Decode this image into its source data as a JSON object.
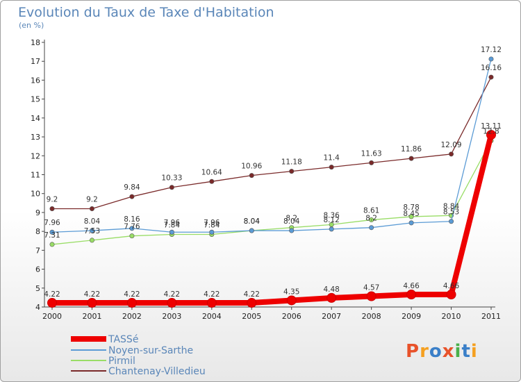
{
  "header": {
    "title": "Evolution du Taux de Taxe d'Habitation",
    "unit": "(en %)"
  },
  "logo": {
    "text": "Proxiti",
    "colors": [
      "#e8522a",
      "#f5a020",
      "#3a7fc8",
      "#e8522a",
      "#4ab04a",
      "#3a7fc8",
      "#f5a020"
    ]
  },
  "chart_data": {
    "type": "line",
    "title": "Evolution du Taux de Taxe d'Habitation",
    "ylabel": "(en %)",
    "xlabel": "",
    "x": [
      "2000",
      "2001",
      "2002",
      "2003",
      "2004",
      "2005",
      "2006",
      "2007",
      "2008",
      "2009",
      "2010",
      "2011"
    ],
    "ylim": [
      4,
      18
    ],
    "yticks": [
      "4",
      "5",
      "6",
      "7",
      "8",
      "9",
      "10",
      "11",
      "12",
      "13",
      "14",
      "15",
      "16",
      "17",
      "18"
    ],
    "grid": false,
    "legend_position": "bottom-left",
    "series": [
      {
        "name": "TASSé",
        "color": "#ee0000",
        "values": [
          4.22,
          4.22,
          4.22,
          4.22,
          4.22,
          4.22,
          4.35,
          4.48,
          4.57,
          4.66,
          4.66,
          13.11
        ],
        "labels": [
          "4.22",
          "4.22",
          "4.22",
          "4.22",
          "4.22",
          "4.22",
          "4.35",
          "4.48",
          "4.57",
          "4.66",
          "4.66",
          "13.11"
        ]
      },
      {
        "name": "Noyen-sur-Sarthe",
        "color": "#5b9bd5",
        "values": [
          7.96,
          8.04,
          8.16,
          7.96,
          7.96,
          8.04,
          8.04,
          8.12,
          8.2,
          8.45,
          8.53,
          17.12
        ],
        "labels": [
          "7.96",
          "8.04",
          "8.16",
          "7.96",
          "7.96",
          "8.04",
          "8.04",
          "8.12",
          "8.2",
          "8.45",
          "8.53",
          "17.12"
        ]
      },
      {
        "name": "Pirmil",
        "color": "#99dd66",
        "values": [
          7.31,
          7.53,
          7.76,
          7.84,
          7.84,
          8.04,
          8.2,
          8.36,
          8.61,
          8.78,
          8.84,
          12.8
        ],
        "labels": [
          "7.31",
          "7.53",
          "7.76",
          "7.84",
          "7.84",
          "8.04",
          "8.2",
          "8.36",
          "8.61",
          "8.78",
          "8.84",
          "12.8"
        ]
      },
      {
        "name": "Chantenay-Villedieu",
        "color": "#7a2a2a",
        "values": [
          9.2,
          9.2,
          9.84,
          10.33,
          10.64,
          10.96,
          11.18,
          11.4,
          11.63,
          11.86,
          12.09,
          16.16
        ],
        "labels": [
          "9.2",
          "9.2",
          "9.84",
          "10.33",
          "10.64",
          "10.96",
          "11.18",
          "11.4",
          "11.63",
          "11.86",
          "12.09",
          "16.16"
        ]
      }
    ]
  }
}
